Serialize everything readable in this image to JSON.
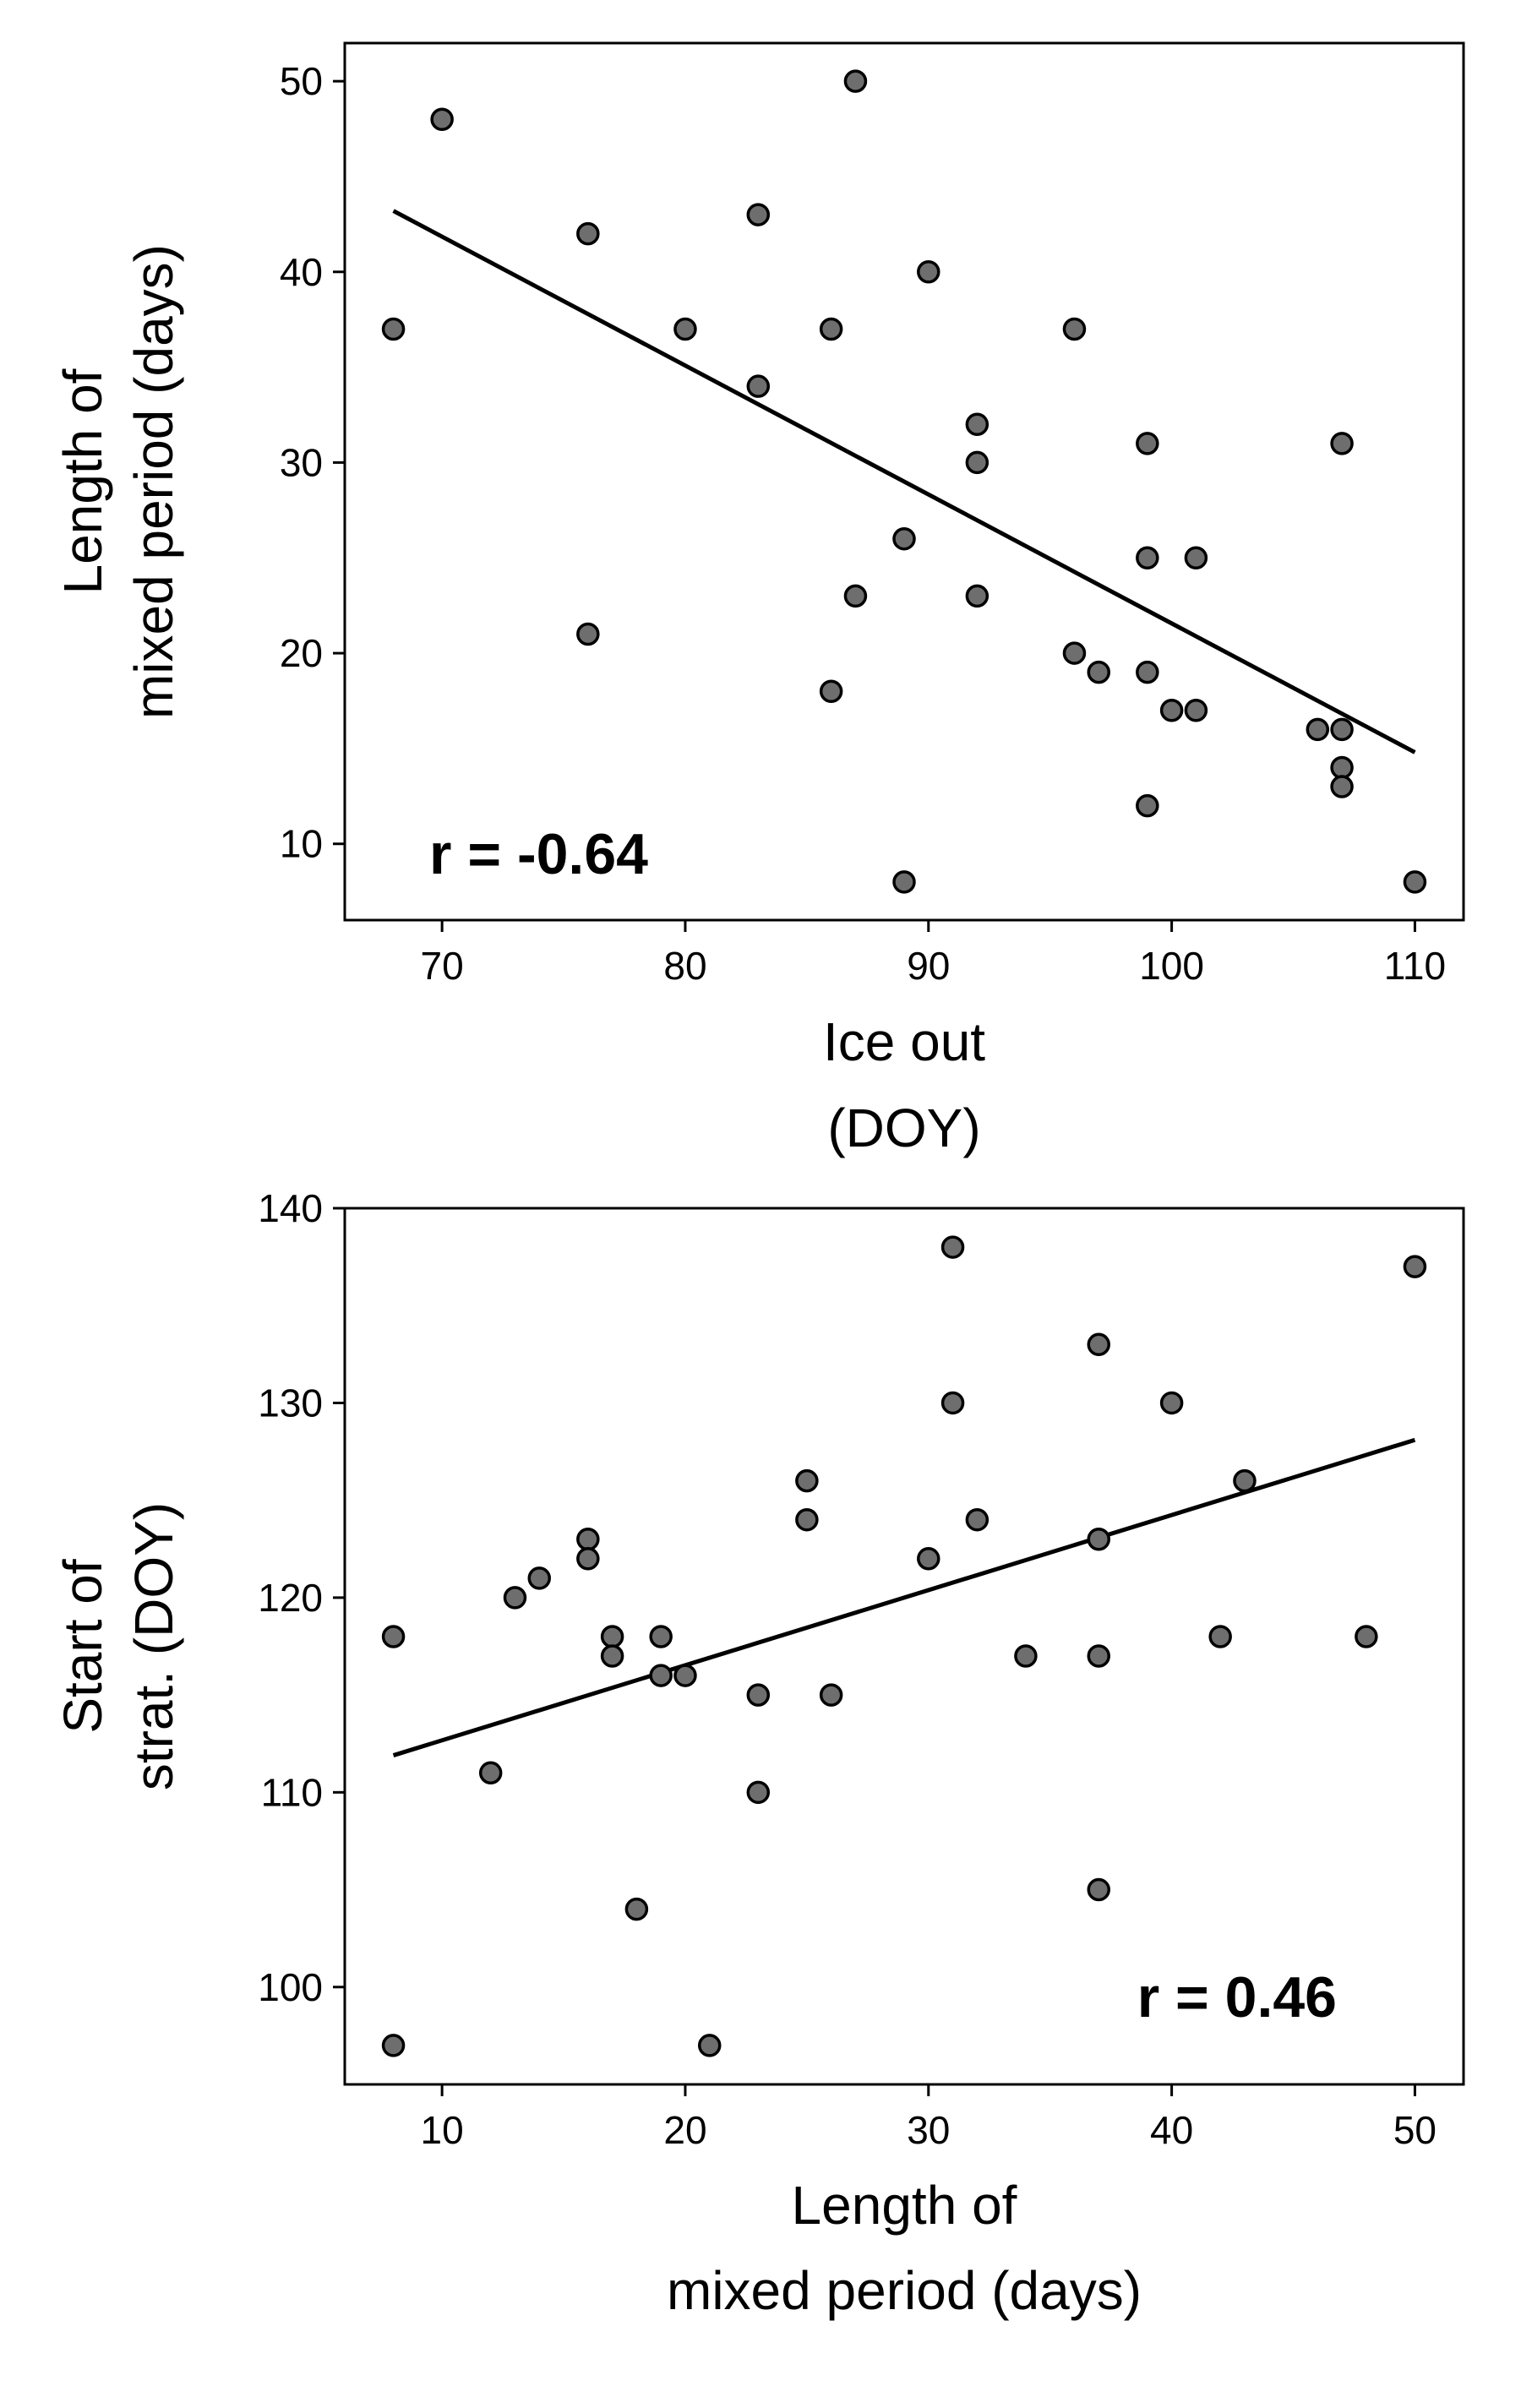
{
  "chart_data": [
    {
      "type": "scatter",
      "x": [
        68,
        70,
        76,
        76,
        80,
        83,
        83,
        86,
        86,
        87,
        87,
        89,
        89,
        90,
        92,
        92,
        92,
        96,
        96,
        97,
        99,
        99,
        99,
        99,
        100,
        101,
        101,
        106,
        107,
        107,
        107,
        107,
        110
      ],
      "y": [
        37,
        48,
        42,
        21,
        37,
        43,
        34,
        37,
        18,
        50,
        23,
        26,
        8,
        40,
        32,
        30,
        23,
        37,
        20,
        19,
        31,
        25,
        19,
        12,
        17,
        25,
        17,
        16,
        31,
        16,
        14,
        13,
        8
      ],
      "fit_line": {
        "x": [
          68,
          110
        ],
        "y": [
          43.2,
          14.8
        ]
      },
      "xlabel": [
        "Ice out",
        "(DOY)"
      ],
      "ylabel": [
        "Length of",
        "mixed period (days)"
      ],
      "xlim": [
        66,
        112
      ],
      "ylim": [
        6,
        52
      ],
      "xticks": [
        70,
        80,
        90,
        100,
        110
      ],
      "yticks": [
        10,
        20,
        30,
        40,
        50
      ],
      "annotation": "r = -0.64",
      "annotation_position": "bottom-left",
      "marker_color": "#6e6e6e",
      "grid": false
    },
    {
      "type": "scatter",
      "x": [
        8,
        8,
        12,
        13,
        14,
        16,
        16,
        17,
        17,
        18,
        19,
        19,
        20,
        21,
        23,
        23,
        25,
        25,
        26,
        30,
        31,
        31,
        32,
        34,
        37,
        37,
        37,
        37,
        40,
        42,
        43,
        48,
        50
      ],
      "y": [
        118,
        97,
        111,
        120,
        121,
        123,
        122,
        118,
        117,
        104,
        118,
        116,
        116,
        97,
        115,
        110,
        126,
        124,
        115,
        122,
        138,
        130,
        124,
        117,
        133,
        123,
        117,
        105,
        130,
        118,
        126,
        118,
        137
      ],
      "fit_line": {
        "x": [
          8,
          50
        ],
        "y": [
          111.9,
          128.1
        ]
      },
      "xlabel": [
        "Length of",
        "mixed period (days)"
      ],
      "ylabel": [
        "Start of",
        "strat. (DOY)"
      ],
      "xlim": [
        6,
        52
      ],
      "ylim": [
        95,
        140
      ],
      "xticks": [
        10,
        20,
        30,
        40,
        50
      ],
      "yticks": [
        100,
        110,
        120,
        130,
        140
      ],
      "annotation": "r = 0.46",
      "annotation_position": "bottom-right",
      "marker_color": "#6e6e6e",
      "grid": false
    }
  ]
}
